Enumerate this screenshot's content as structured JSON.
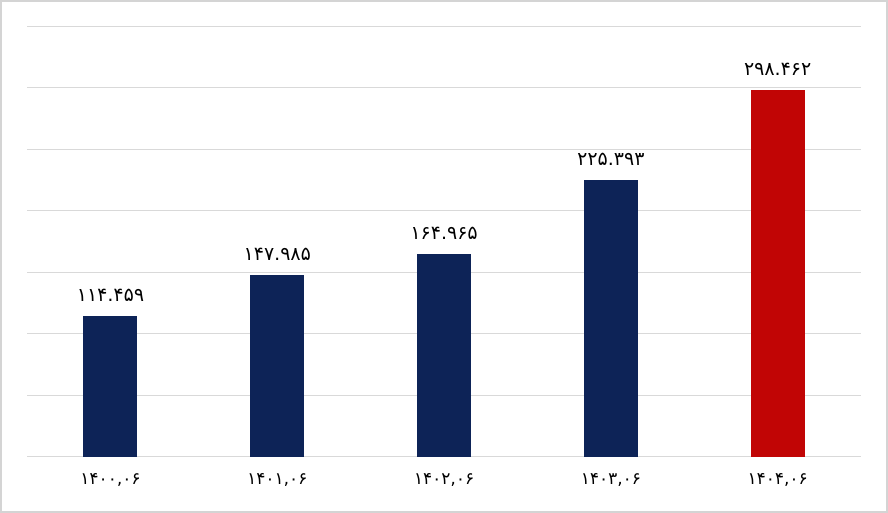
{
  "chart": {
    "background_color": "#ffffff",
    "border_color": "#d4d4d4",
    "gridline_color": "#d9d9d9",
    "text_color": "#000000",
    "bar_color_default": "#0d2357",
    "bar_color_highlight": "#c10505"
  },
  "chart_data": {
    "type": "bar",
    "title": "",
    "xlabel": "",
    "ylabel": "",
    "categories": [
      "۱۴۰۰,۰۶",
      "۱۴۰۱,۰۶",
      "۱۴۰۲,۰۶",
      "۱۴۰۳,۰۶",
      "۱۴۰۴,۰۶"
    ],
    "values": [
      114459,
      147985,
      164965,
      225393,
      298462
    ],
    "value_labels": [
      "۱۱۴.۴۵۹",
      "۱۴۷.۹۸۵",
      "۱۶۴.۹۶۵",
      "۲۲۵.۳۹۳",
      "۲۹۸.۴۶۲"
    ],
    "bar_colors": [
      "#0d2357",
      "#0d2357",
      "#0d2357",
      "#0d2357",
      "#c10505"
    ],
    "ylim": [
      0,
      350000
    ],
    "gridline_step": 50000,
    "grid": true,
    "legend_position": "none",
    "y_tick_labels_visible": false
  }
}
